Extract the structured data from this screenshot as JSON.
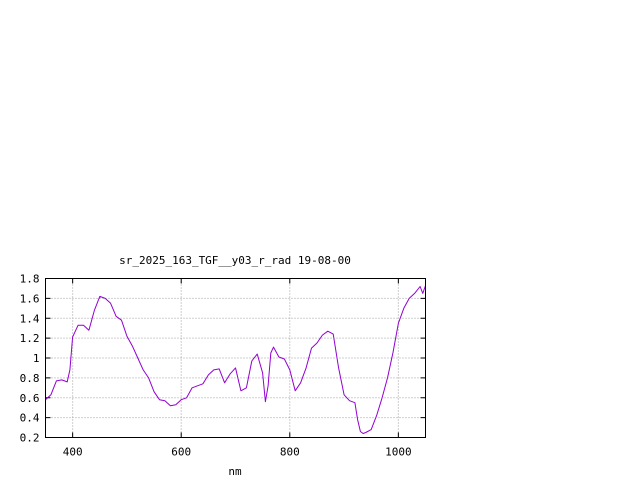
{
  "chart_data": {
    "type": "line",
    "title": "sr_2025_163_TGF__y03_r_rad 19-08-00",
    "xlabel": "nm",
    "ylabel": "",
    "xlim": [
      350,
      1050
    ],
    "ylim": [
      0.2,
      1.8
    ],
    "x_ticks": [
      400,
      600,
      800,
      1000
    ],
    "y_ticks": [
      0.2,
      0.4,
      0.6,
      0.8,
      1,
      1.2,
      1.4,
      1.6,
      1.8
    ],
    "x_tick_labels": [
      "400",
      "600",
      "800",
      "1000"
    ],
    "y_tick_labels": [
      "0.2",
      "0.4",
      "0.6",
      "0.8",
      "1",
      "1.2",
      "1.4",
      "1.6",
      "1.8"
    ],
    "grid": true,
    "line_color": "#9400d3",
    "series": [
      {
        "name": "",
        "x": [
          350,
          360,
          370,
          380,
          390,
          395,
          400,
          410,
          420,
          430,
          440,
          450,
          460,
          470,
          480,
          490,
          500,
          510,
          520,
          530,
          540,
          550,
          560,
          570,
          580,
          590,
          600,
          610,
          620,
          630,
          640,
          650,
          660,
          670,
          680,
          690,
          700,
          710,
          720,
          730,
          740,
          750,
          755,
          760,
          765,
          770,
          780,
          790,
          800,
          810,
          820,
          830,
          840,
          850,
          860,
          870,
          880,
          890,
          900,
          910,
          920,
          925,
          930,
          935,
          940,
          950,
          960,
          970,
          980,
          990,
          1000,
          1010,
          1020,
          1030,
          1040,
          1045,
          1050
        ],
        "y": [
          0.58,
          0.63,
          0.77,
          0.78,
          0.76,
          0.88,
          1.21,
          1.33,
          1.33,
          1.28,
          1.48,
          1.62,
          1.6,
          1.55,
          1.42,
          1.38,
          1.22,
          1.12,
          1.0,
          0.88,
          0.8,
          0.66,
          0.58,
          0.57,
          0.52,
          0.53,
          0.58,
          0.6,
          0.7,
          0.72,
          0.74,
          0.83,
          0.88,
          0.89,
          0.75,
          0.84,
          0.9,
          0.67,
          0.7,
          0.97,
          1.04,
          0.85,
          0.56,
          0.72,
          1.05,
          1.11,
          1.01,
          0.99,
          0.88,
          0.67,
          0.75,
          0.9,
          1.1,
          1.15,
          1.23,
          1.27,
          1.24,
          0.9,
          0.63,
          0.57,
          0.55,
          0.38,
          0.26,
          0.24,
          0.25,
          0.28,
          0.42,
          0.6,
          0.8,
          1.05,
          1.35,
          1.5,
          1.6,
          1.65,
          1.72,
          1.65,
          1.73
        ]
      }
    ]
  }
}
